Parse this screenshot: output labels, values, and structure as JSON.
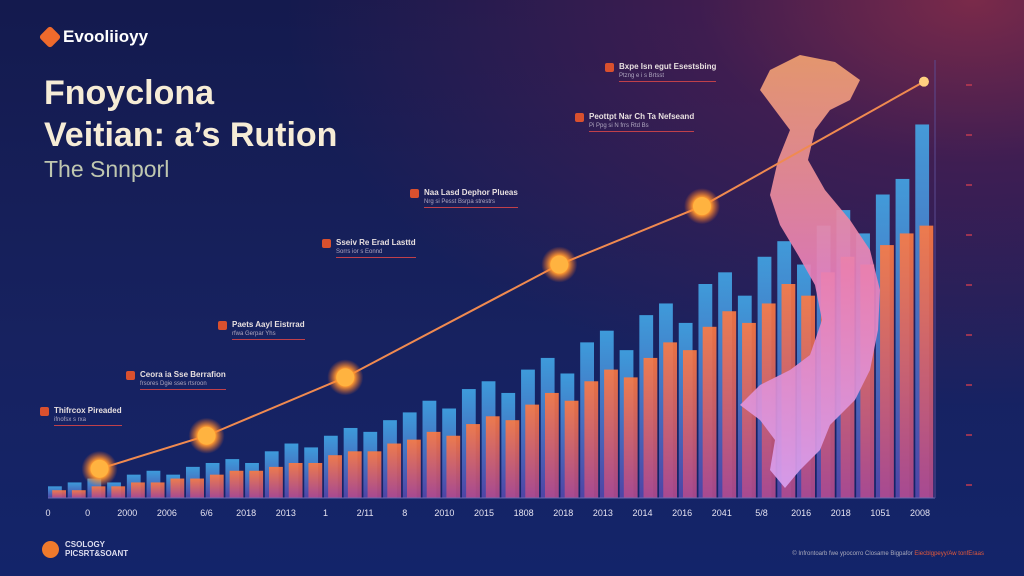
{
  "brand": {
    "name": "Evooliioyy"
  },
  "header": {
    "title_line1": "Fnoyclona",
    "title_line2": "Veitian: a’s Rution",
    "subtitle": "The Snnporl"
  },
  "annotations": [
    {
      "title": "Thifrcox Pireaded",
      "sub": "ifnofsx s rxa"
    },
    {
      "title": "Ceora ia Sse Berrafion",
      "sub": "frsores Dgie sses rtsroon"
    },
    {
      "title": "Paets Aayl Eistrrad",
      "sub": "rfwa Gerpar Yhs"
    },
    {
      "title": "Sseiv Re Erad Lasttd",
      "sub": "Sorrs ior s Eonnd"
    },
    {
      "title": "Naa Lasd Dephor Plueas",
      "sub": "Nrg si Pesst Bsrpa strestrs"
    },
    {
      "title": "Peottpt Nar Ch Ta Nefseand",
      "sub": "Pi Ppg si N frrs Rtd Bs"
    },
    {
      "title": "Bxpe Isn egut Esestsbing",
      "sub": "Ptzng e i s Brtsst"
    }
  ],
  "footer": {
    "line1": "CSOLOGY",
    "line2": "PICSRT&SOANT",
    "credit_prefix": "© Infrontoarb fwe ypocorro Closame Bigpafor",
    "credit_accent": "Eiecblgpeyy/Aw tonfEraas"
  },
  "colors": {
    "blue_bars": "#3f8fe0",
    "orange_bars": "#f06a3a",
    "line": "#f08a50",
    "node": "#ffb340",
    "map": "#e890c8"
  },
  "chart_data": {
    "type": "bar",
    "title": "",
    "xlabel": "",
    "ylabel": "",
    "ylim": [
      0,
      110
    ],
    "grid": false,
    "x_tick_labels": [
      "0",
      "0",
      "2000",
      "2006",
      "6/6",
      "2018",
      "2013",
      "1",
      "2/11",
      "8",
      "2010",
      "2015",
      "1808",
      "2018",
      "2013",
      "2014",
      "2016",
      "2041",
      "5/8",
      "2016",
      "2018",
      "1051",
      "2008"
    ],
    "series": [
      {
        "values": [
          3,
          4,
          5,
          4,
          6,
          7,
          6,
          8,
          9,
          10,
          9,
          12,
          14,
          13,
          16,
          18,
          17,
          20,
          22,
          25,
          23,
          28,
          30,
          27,
          33,
          36,
          32,
          40,
          43,
          38,
          47,
          50,
          45,
          55,
          58,
          52,
          62,
          66,
          60,
          70,
          74,
          68,
          78,
          82,
          96
        ]
      },
      {
        "values": [
          2,
          2,
          3,
          3,
          4,
          4,
          5,
          5,
          6,
          7,
          7,
          8,
          9,
          9,
          11,
          12,
          12,
          14,
          15,
          17,
          16,
          19,
          21,
          20,
          24,
          27,
          25,
          30,
          33,
          31,
          36,
          40,
          38,
          44,
          48,
          45,
          50,
          55,
          52,
          58,
          62,
          60,
          65,
          68,
          70
        ]
      }
    ],
    "trend_line": {
      "x": [
        1.3,
        4.0,
        7.5,
        12.9,
        16.5,
        22.1
      ],
      "y": [
        7.5,
        16,
        31,
        60,
        75,
        107
      ]
    }
  }
}
